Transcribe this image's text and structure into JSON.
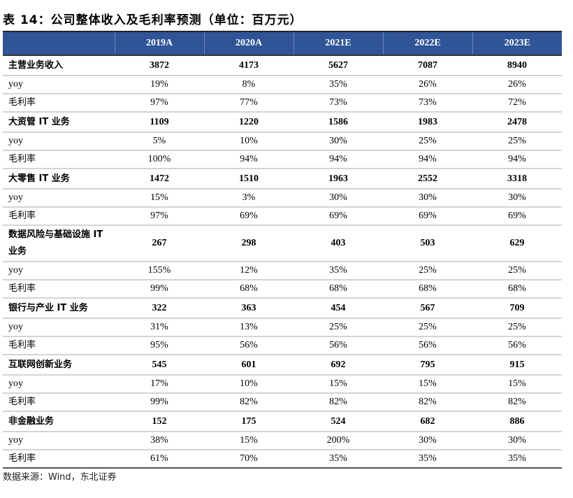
{
  "title": "表 14：公司整体收入及毛利率预测（单位：百万元）",
  "header": [
    "",
    "2019A",
    "2020A",
    "2021E",
    "2022E",
    "2023E"
  ],
  "sections": [
    {
      "name": "主营业务收入",
      "values": [
        "3872",
        "4173",
        "5627",
        "7087",
        "8940"
      ],
      "yoy": [
        "19%",
        "8%",
        "35%",
        "26%",
        "26%"
      ],
      "margin": [
        "97%",
        "77%",
        "73%",
        "73%",
        "72%"
      ]
    },
    {
      "name": "大资管 IT 业务",
      "values": [
        "1109",
        "1220",
        "1586",
        "1983",
        "2478"
      ],
      "yoy": [
        "5%",
        "10%",
        "30%",
        "25%",
        "25%"
      ],
      "margin": [
        "100%",
        "94%",
        "94%",
        "94%",
        "94%"
      ]
    },
    {
      "name": "大零售 IT 业务",
      "values": [
        "1472",
        "1510",
        "1963",
        "2552",
        "3318"
      ],
      "yoy": [
        "15%",
        "3%",
        "30%",
        "30%",
        "30%"
      ],
      "margin": [
        "97%",
        "69%",
        "69%",
        "69%",
        "69%"
      ]
    },
    {
      "name": "数据风险与基础设施 IT 业务",
      "values": [
        "267",
        "298",
        "403",
        "503",
        "629"
      ],
      "yoy": [
        "155%",
        "12%",
        "35%",
        "25%",
        "25%"
      ],
      "margin": [
        "99%",
        "68%",
        "68%",
        "68%",
        "68%"
      ]
    },
    {
      "name": "银行与产业 IT 业务",
      "values": [
        "322",
        "363",
        "454",
        "567",
        "709"
      ],
      "yoy": [
        "31%",
        "13%",
        "25%",
        "25%",
        "25%"
      ],
      "margin": [
        "95%",
        "56%",
        "56%",
        "56%",
        "56%"
      ]
    },
    {
      "name": "互联网创新业务",
      "values": [
        "545",
        "601",
        "692",
        "795",
        "915"
      ],
      "yoy": [
        "17%",
        "10%",
        "15%",
        "15%",
        "15%"
      ],
      "margin": [
        "99%",
        "82%",
        "82%",
        "82%",
        "82%"
      ]
    },
    {
      "name": "非金融业务",
      "values": [
        "152",
        "175",
        "524",
        "682",
        "886"
      ],
      "yoy": [
        "38%",
        "15%",
        "200%",
        "30%",
        "30%"
      ],
      "margin": [
        "61%",
        "70%",
        "35%",
        "35%",
        "35%"
      ]
    }
  ],
  "row_labels": {
    "yoy": "yoy",
    "margin": "毛利率"
  },
  "source": "数据来源：Wind，东北证券",
  "colors": {
    "header_bg": "#2F5597",
    "header_text": "#FFFFFF"
  }
}
